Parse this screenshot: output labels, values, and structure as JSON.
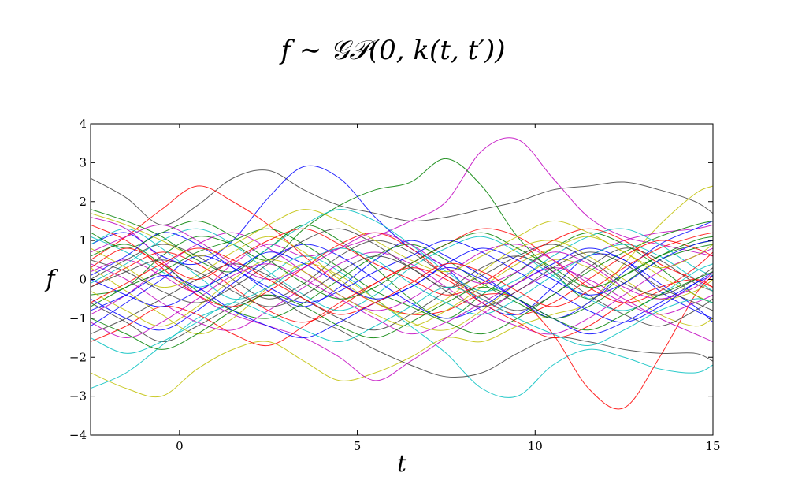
{
  "chart_data": {
    "type": "line",
    "title": "f ∼ 𝒢𝒫(0, k(t, t′))",
    "xlabel": "t",
    "ylabel": "f",
    "xlim": [
      -2.5,
      15
    ],
    "ylim": [
      -4,
      4
    ],
    "x_ticks": [
      0,
      5,
      10,
      15
    ],
    "x_tick_labels": [
      "0",
      "5",
      "10",
      "15"
    ],
    "y_ticks": [
      -4,
      -3,
      -2,
      -1,
      0,
      1,
      2,
      3,
      4
    ],
    "y_tick_labels": [
      "−4",
      "−3",
      "−2",
      "−1",
      "0",
      "1",
      "2",
      "3",
      "4"
    ],
    "grid": false,
    "legend": "none",
    "palette": [
      "#0000ff",
      "#008000",
      "#ff0000",
      "#00bfbf",
      "#bf00bf",
      "#bfbf00",
      "#404040"
    ],
    "x": [
      -2.5,
      -1.5,
      -0.5,
      0.5,
      1.5,
      2.5,
      3.5,
      4.5,
      5.5,
      6.5,
      7.5,
      8.5,
      9.5,
      10.5,
      11.5,
      12.5,
      13.5,
      14.5,
      15
    ],
    "series": [
      {
        "color": "#404040",
        "values": [
          2.6,
          2.1,
          1.4,
          1.9,
          2.6,
          2.8,
          2.3,
          1.9,
          1.7,
          1.5,
          1.6,
          1.8,
          2.0,
          2.3,
          2.4,
          2.5,
          2.3,
          2.0,
          1.7
        ]
      },
      {
        "color": "#bf00bf",
        "values": [
          0.2,
          0.5,
          0.1,
          -0.3,
          0.4,
          0.9,
          0.6,
          0.8,
          1.1,
          1.5,
          2.0,
          3.3,
          3.6,
          2.6,
          1.6,
          1.1,
          0.9,
          0.7,
          0.6
        ]
      },
      {
        "color": "#008000",
        "values": [
          -0.4,
          -0.2,
          0.6,
          1.1,
          0.9,
          0.5,
          1.3,
          1.9,
          2.3,
          2.5,
          3.1,
          2.4,
          1.1,
          0.2,
          -0.5,
          0.1,
          0.6,
          0.9,
          1.0
        ]
      },
      {
        "color": "#0000ff",
        "values": [
          0.9,
          1.2,
          0.6,
          0.4,
          1.0,
          2.1,
          2.9,
          2.6,
          1.6,
          0.8,
          0.3,
          -0.6,
          -0.9,
          -0.2,
          0.6,
          0.5,
          -0.3,
          -0.8,
          -1.0
        ]
      },
      {
        "color": "#00bfbf",
        "values": [
          -2.8,
          -2.4,
          -1.7,
          -1.0,
          -0.6,
          0.1,
          0.6,
          0.2,
          -0.5,
          -1.2,
          -1.9,
          -2.8,
          -3.0,
          -2.2,
          -1.8,
          -2.0,
          -2.3,
          -2.4,
          -2.2
        ]
      },
      {
        "color": "#bfbf00",
        "values": [
          -2.4,
          -2.8,
          -3.0,
          -2.3,
          -1.8,
          -1.6,
          -2.1,
          -2.6,
          -2.4,
          -2.0,
          -1.5,
          -1.6,
          -1.2,
          -0.9,
          -0.6,
          0.4,
          1.4,
          2.2,
          2.4
        ]
      },
      {
        "color": "#ff0000",
        "values": [
          0.5,
          1.1,
          1.8,
          2.4,
          2.0,
          1.4,
          0.6,
          -0.1,
          -0.6,
          -0.9,
          -0.8,
          -0.4,
          -0.5,
          -1.4,
          -2.8,
          -3.3,
          -2.0,
          -0.4,
          0.1
        ]
      },
      {
        "color": "#404040",
        "values": [
          -0.6,
          -1.1,
          -1.6,
          -1.2,
          -0.7,
          -0.4,
          -0.9,
          -1.3,
          -1.8,
          -2.2,
          -2.5,
          -2.4,
          -1.9,
          -1.5,
          -1.6,
          -1.8,
          -1.9,
          -1.9,
          -2.1
        ]
      },
      {
        "color": "#bf00bf",
        "values": [
          1.6,
          1.3,
          0.5,
          -0.4,
          -0.9,
          -1.2,
          -1.5,
          -2.0,
          -2.6,
          -2.1,
          -1.5,
          -0.9,
          -0.3,
          0.2,
          0.6,
          1.0,
          1.2,
          1.3,
          1.4
        ]
      },
      {
        "color": "#008000",
        "values": [
          1.8,
          1.5,
          1.1,
          0.5,
          0.2,
          0.8,
          1.4,
          1.0,
          0.3,
          -0.5,
          -1.0,
          -0.4,
          0.2,
          0.8,
          1.2,
          0.9,
          0.3,
          -0.4,
          -0.6
        ]
      },
      {
        "color": "#0000ff",
        "values": [
          -1.2,
          -0.6,
          0.0,
          0.6,
          0.3,
          -0.3,
          -0.7,
          -0.2,
          0.5,
          1.0,
          0.6,
          0.1,
          -0.5,
          -1.0,
          -0.6,
          0.2,
          0.9,
          1.3,
          1.5
        ]
      },
      {
        "color": "#ff0000",
        "values": [
          -0.2,
          0.3,
          0.7,
          0.4,
          -0.2,
          -0.8,
          -1.1,
          -0.7,
          -0.1,
          0.4,
          0.9,
          1.3,
          1.1,
          0.5,
          -0.2,
          -0.6,
          -0.3,
          0.3,
          0.7
        ]
      },
      {
        "color": "#00bfbf",
        "values": [
          1.1,
          0.7,
          0.2,
          -0.2,
          0.2,
          0.8,
          1.4,
          1.8,
          1.5,
          0.9,
          0.2,
          -0.3,
          0.0,
          0.6,
          1.1,
          1.3,
          0.9,
          0.3,
          0.1
        ]
      },
      {
        "color": "#bfbf00",
        "values": [
          0.3,
          -0.3,
          -0.9,
          -1.4,
          -1.0,
          -0.2,
          0.4,
          0.1,
          -0.5,
          -1.1,
          -1.3,
          -0.8,
          -0.1,
          0.5,
          0.3,
          -0.3,
          -0.9,
          -1.2,
          -1.0
        ]
      },
      {
        "color": "#404040",
        "values": [
          0.0,
          0.5,
          0.9,
          0.6,
          0.0,
          -0.5,
          -0.1,
          0.6,
          1.0,
          0.7,
          0.1,
          -0.4,
          -0.8,
          -0.4,
          0.3,
          0.8,
          0.5,
          -0.1,
          -0.3
        ]
      },
      {
        "color": "#bf00bf",
        "values": [
          -0.9,
          -0.4,
          0.3,
          0.9,
          1.2,
          0.8,
          0.2,
          -0.4,
          -0.8,
          -0.5,
          0.1,
          0.7,
          0.9,
          0.5,
          -0.1,
          -0.6,
          -0.9,
          -0.6,
          -0.4
        ]
      },
      {
        "color": "#008000",
        "values": [
          0.6,
          0.9,
          0.4,
          -0.3,
          -0.8,
          -1.0,
          -0.6,
          0.0,
          0.6,
          0.9,
          0.5,
          -0.1,
          -0.6,
          -1.0,
          -0.7,
          -0.1,
          0.5,
          0.8,
          0.9
        ]
      },
      {
        "color": "#0000ff",
        "values": [
          -0.5,
          -1.0,
          -1.3,
          -0.8,
          -0.1,
          0.5,
          0.9,
          0.6,
          0.0,
          -0.6,
          -1.0,
          -0.7,
          -0.1,
          0.4,
          0.8,
          0.5,
          -0.1,
          -0.7,
          -1.1
        ]
      },
      {
        "color": "#ff0000",
        "values": [
          1.4,
          1.0,
          0.3,
          -0.4,
          -0.7,
          -0.3,
          0.3,
          0.9,
          1.2,
          0.8,
          0.1,
          -0.5,
          -0.9,
          -0.6,
          0.0,
          0.6,
          1.0,
          0.8,
          0.6
        ]
      },
      {
        "color": "#00bfbf",
        "values": [
          -0.1,
          0.4,
          1.0,
          1.3,
          0.9,
          0.2,
          -0.4,
          -0.8,
          -0.4,
          0.3,
          0.8,
          1.1,
          0.7,
          0.1,
          -0.5,
          -0.8,
          -0.4,
          0.2,
          0.4
        ]
      },
      {
        "color": "#bfbf00",
        "values": [
          0.8,
          0.3,
          -0.2,
          0.1,
          0.7,
          1.1,
          0.7,
          0.0,
          -0.6,
          -0.9,
          -0.5,
          0.2,
          0.8,
          1.0,
          0.6,
          0.0,
          -0.5,
          -0.3,
          0.0
        ]
      },
      {
        "color": "#404040",
        "values": [
          -1.4,
          -1.0,
          -0.5,
          0.0,
          0.4,
          0.1,
          -0.5,
          -1.0,
          -1.3,
          -0.9,
          -0.3,
          0.3,
          0.6,
          0.2,
          -0.4,
          -0.9,
          -1.2,
          -0.8,
          -0.5
        ]
      },
      {
        "color": "#bf00bf",
        "values": [
          0.4,
          0.0,
          -0.6,
          -1.1,
          -1.3,
          -0.8,
          -0.2,
          0.4,
          0.7,
          0.4,
          -0.2,
          -0.8,
          -1.2,
          -1.4,
          -1.0,
          -0.4,
          0.2,
          0.6,
          0.8
        ]
      },
      {
        "color": "#008000",
        "values": [
          -0.7,
          -0.2,
          0.2,
          0.7,
          1.0,
          1.3,
          0.9,
          0.3,
          -0.3,
          -0.7,
          -1.1,
          -1.4,
          -1.0,
          -0.4,
          0.2,
          0.7,
          1.1,
          1.4,
          1.5
        ]
      },
      {
        "color": "#0000ff",
        "values": [
          0.1,
          0.6,
          1.2,
          0.9,
          0.3,
          -0.2,
          -0.6,
          -0.3,
          0.2,
          0.6,
          1.0,
          0.7,
          0.2,
          -0.3,
          -0.8,
          -1.1,
          -0.7,
          -0.1,
          0.2
        ]
      },
      {
        "color": "#ff0000",
        "values": [
          -1.6,
          -1.2,
          -0.7,
          -0.9,
          -1.4,
          -1.7,
          -1.2,
          -0.6,
          -0.1,
          0.3,
          0.0,
          -0.6,
          -1.1,
          -1.5,
          -1.2,
          -0.6,
          -0.2,
          0.0,
          -0.2
        ]
      },
      {
        "color": "#00bfbf",
        "values": [
          0.9,
          1.3,
          0.8,
          0.1,
          -0.5,
          -0.2,
          0.4,
          0.8,
          0.5,
          -0.1,
          -0.6,
          -0.9,
          -0.5,
          0.1,
          0.6,
          0.9,
          0.6,
          0.0,
          -0.3
        ]
      },
      {
        "color": "#bfbf00",
        "values": [
          -0.3,
          -0.8,
          -1.2,
          -0.7,
          0.0,
          0.5,
          0.2,
          -0.4,
          -0.9,
          -1.2,
          -0.8,
          -0.2,
          0.4,
          0.8,
          1.1,
          0.7,
          0.1,
          -0.4,
          -0.6
        ]
      },
      {
        "color": "#404040",
        "values": [
          0.5,
          0.2,
          -0.3,
          -0.6,
          -0.2,
          0.4,
          1.0,
          1.3,
          0.9,
          0.3,
          -0.2,
          0.1,
          0.6,
          0.9,
          0.5,
          -0.1,
          -0.4,
          0.0,
          0.3
        ]
      },
      {
        "color": "#bf00bf",
        "values": [
          -1.1,
          -1.5,
          -1.1,
          -0.5,
          0.1,
          0.4,
          0.0,
          -0.5,
          -1.0,
          -1.4,
          -1.1,
          -0.6,
          -0.1,
          0.3,
          0.0,
          -0.5,
          -1.0,
          -1.4,
          -1.6
        ]
      },
      {
        "color": "#008000",
        "values": [
          1.2,
          0.8,
          1.2,
          1.5,
          1.1,
          0.5,
          -0.1,
          -0.5,
          -0.2,
          0.4,
          0.9,
          1.2,
          0.8,
          0.3,
          -0.2,
          0.1,
          0.6,
          1.0,
          1.1
        ]
      },
      {
        "color": "#0000ff",
        "values": [
          -0.8,
          -0.4,
          0.1,
          -0.2,
          -0.8,
          -1.2,
          -1.5,
          -1.1,
          -0.6,
          -0.2,
          0.3,
          0.0,
          -0.5,
          -1.0,
          -1.4,
          -1.1,
          -0.6,
          -0.1,
          0.1
        ]
      },
      {
        "color": "#ff0000",
        "values": [
          0.3,
          0.8,
          0.4,
          0.0,
          0.5,
          1.0,
          1.3,
          0.9,
          0.4,
          0.0,
          -0.4,
          -0.1,
          0.5,
          1.0,
          1.3,
          1.0,
          0.4,
          0.0,
          -0.2
        ]
      },
      {
        "color": "#00bfbf",
        "values": [
          -1.5,
          -1.9,
          -1.6,
          -1.1,
          -0.6,
          -0.9,
          -1.3,
          -1.6,
          -1.2,
          -0.7,
          -0.2,
          -0.5,
          -1.0,
          -1.4,
          -1.7,
          -1.3,
          -0.8,
          -0.5,
          -0.6
        ]
      },
      {
        "color": "#bfbf00",
        "values": [
          1.7,
          1.4,
          1.0,
          0.6,
          0.9,
          1.4,
          1.8,
          1.5,
          1.0,
          0.5,
          0.2,
          0.6,
          1.1,
          1.5,
          1.2,
          0.7,
          0.3,
          0.6,
          0.9
        ]
      },
      {
        "color": "#404040",
        "values": [
          -0.2,
          0.2,
          0.5,
          0.2,
          -0.3,
          -0.7,
          -0.4,
          0.2,
          0.6,
          0.3,
          -0.3,
          -0.7,
          -0.3,
          0.3,
          0.7,
          0.4,
          -0.2,
          -0.6,
          -0.8
        ]
      },
      {
        "color": "#bf00bf",
        "values": [
          0.7,
          1.1,
          1.4,
          1.0,
          0.4,
          0.0,
          0.3,
          0.8,
          1.2,
          0.9,
          0.3,
          -0.1,
          0.2,
          0.7,
          0.4,
          -0.2,
          -0.5,
          -0.2,
          0.2
        ]
      },
      {
        "color": "#008000",
        "values": [
          -1.0,
          -1.4,
          -1.8,
          -1.4,
          -0.8,
          -0.4,
          -0.7,
          -1.2,
          -1.5,
          -1.1,
          -0.6,
          -0.2,
          -0.5,
          -1.0,
          -1.3,
          -0.9,
          -0.4,
          0.0,
          0.2
        ]
      },
      {
        "color": "#0000ff",
        "values": [
          0.0,
          -0.4,
          -0.7,
          -0.3,
          0.2,
          0.7,
          0.4,
          -0.1,
          -0.5,
          -0.2,
          0.4,
          0.8,
          0.5,
          0.0,
          -0.4,
          -0.1,
          0.5,
          0.9,
          1.0
        ]
      },
      {
        "color": "#ff0000",
        "values": [
          -0.6,
          -0.1,
          0.4,
          0.8,
          0.5,
          0.0,
          -0.5,
          -0.9,
          -0.6,
          -0.1,
          0.4,
          0.2,
          -0.3,
          -0.7,
          -0.3,
          0.3,
          0.8,
          1.1,
          1.2
        ]
      }
    ]
  }
}
